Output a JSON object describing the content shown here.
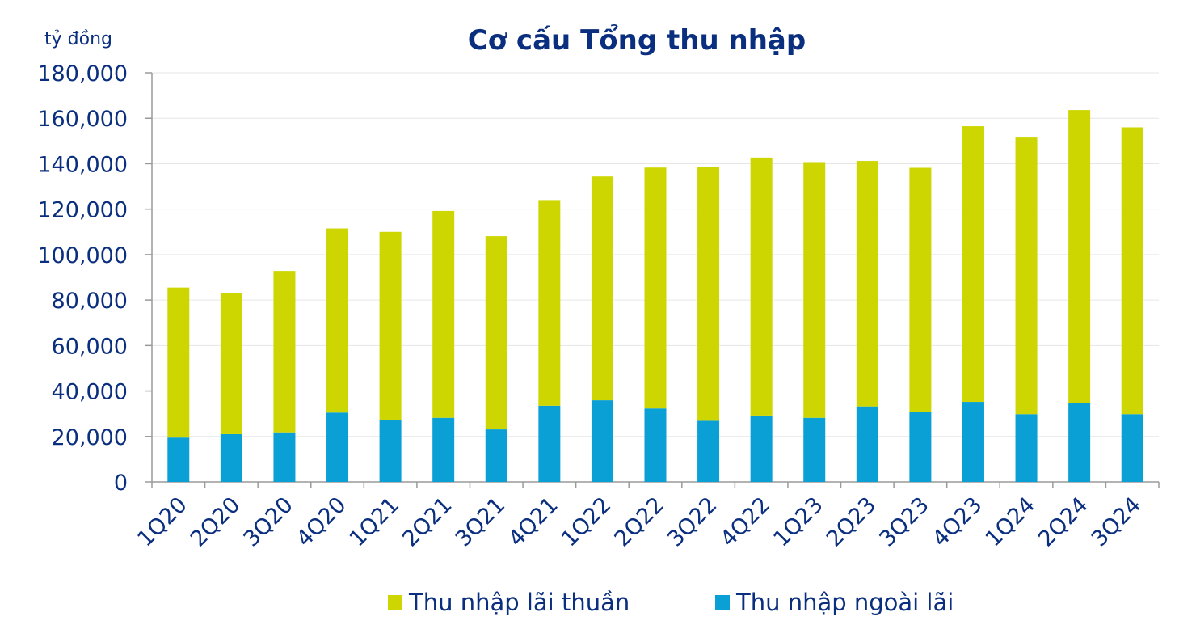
{
  "chart_data": {
    "type": "bar",
    "stacked": true,
    "title": "Cơ cấu Tổng thu nhập",
    "unit_label": "tỷ đồng",
    "ylim": [
      0,
      180000
    ],
    "yticks": [
      "0",
      "20,000",
      "40,000",
      "60,000",
      "80,000",
      "100,000",
      "120,000",
      "140,000",
      "160,000",
      "180,000"
    ],
    "ytick_values": [
      0,
      20000,
      40000,
      60000,
      80000,
      100000,
      120000,
      140000,
      160000,
      180000
    ],
    "grid": true,
    "legend_position": "bottom",
    "categories": [
      "1Q20",
      "2Q20",
      "3Q20",
      "4Q20",
      "1Q21",
      "2Q21",
      "3Q21",
      "4Q21",
      "1Q22",
      "2Q22",
      "3Q22",
      "4Q22",
      "1Q23",
      "2Q23",
      "3Q23",
      "4Q23",
      "1Q24",
      "2Q24",
      "3Q24"
    ],
    "series": [
      {
        "name": "Thu nhập ngoài lãi",
        "color": "#0aa0d6",
        "values": [
          19500,
          21000,
          21800,
          30500,
          27400,
          28200,
          23100,
          33500,
          35900,
          32300,
          26900,
          29200,
          28200,
          33200,
          30900,
          35200,
          29800,
          34600,
          29800
        ]
      },
      {
        "name": "Thu nhập lãi thuần",
        "color": "#cdd600",
        "values": [
          66000,
          62000,
          71000,
          81000,
          82600,
          91000,
          85000,
          90500,
          98500,
          106000,
          111500,
          113500,
          112500,
          108000,
          107300,
          121300,
          121700,
          129000,
          126200
        ]
      }
    ]
  }
}
